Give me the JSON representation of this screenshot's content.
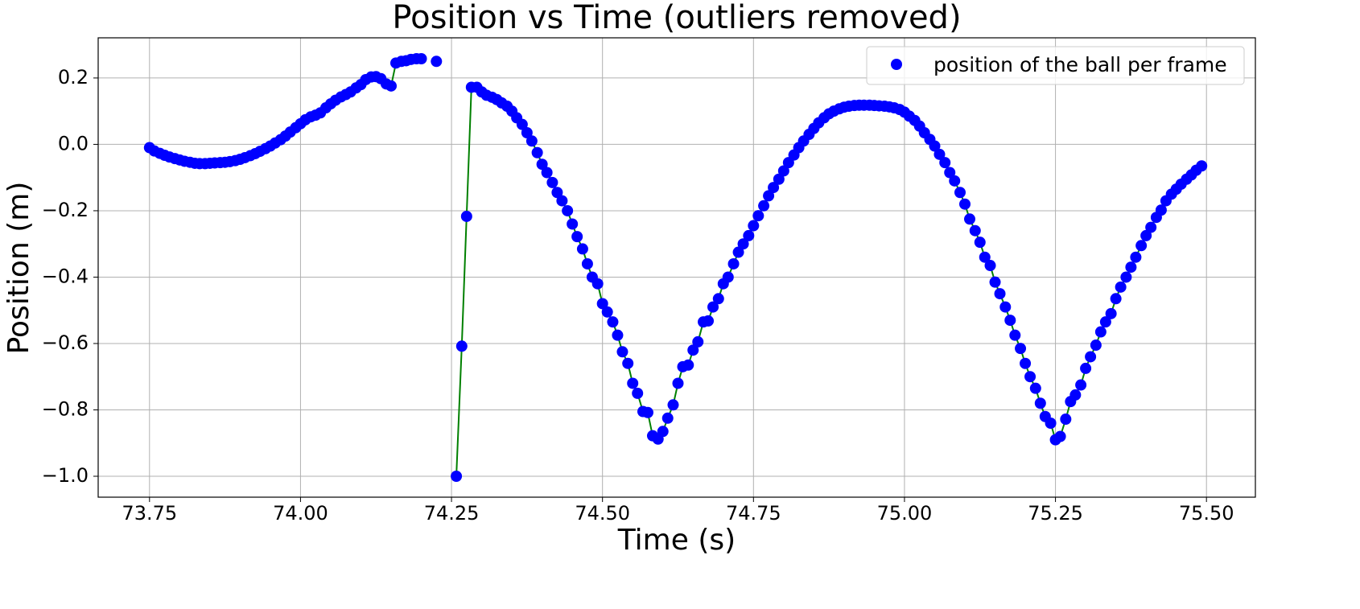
{
  "chart_data": {
    "type": "scatter",
    "title": "Position vs Time (outliers removed)",
    "x_label": "Time (s)",
    "y_label": "Position (m)",
    "x": [
      73.75,
      73.758,
      73.767,
      73.775,
      73.783,
      73.792,
      73.8,
      73.808,
      73.817,
      73.825,
      73.833,
      73.842,
      73.85,
      73.858,
      73.867,
      73.875,
      73.883,
      73.892,
      73.9,
      73.908,
      73.917,
      73.925,
      73.933,
      73.942,
      73.95,
      73.958,
      73.967,
      73.975,
      73.983,
      73.992,
      74.0,
      74.008,
      74.017,
      74.025,
      74.033,
      74.042,
      74.05,
      74.058,
      74.067,
      74.075,
      74.083,
      74.092,
      74.1,
      74.108,
      74.117,
      74.125,
      74.133,
      74.142,
      74.15,
      74.158,
      74.167,
      74.175,
      74.183,
      74.192,
      74.2,
      74.208,
      74.217,
      74.225,
      74.233,
      74.242,
      74.25,
      74.258,
      74.267,
      74.275,
      74.283,
      74.292,
      74.3,
      74.308,
      74.317,
      74.325,
      74.333,
      74.342,
      74.35,
      74.358,
      74.367,
      74.375,
      74.383,
      74.392,
      74.4,
      74.408,
      74.417,
      74.425,
      74.433,
      74.442,
      74.45,
      74.458,
      74.467,
      74.475,
      74.483,
      74.492,
      74.5,
      74.508,
      74.517,
      74.525,
      74.533,
      74.542,
      74.55,
      74.558,
      74.567,
      74.575,
      74.583,
      74.592,
      74.6,
      74.608,
      74.617,
      74.625,
      74.633,
      74.642,
      74.65,
      74.658,
      74.667,
      74.675,
      74.683,
      74.692,
      74.7,
      74.708,
      74.717,
      74.725,
      74.733,
      74.742,
      74.75,
      74.758,
      74.767,
      74.775,
      74.783,
      74.792,
      74.8,
      74.808,
      74.817,
      74.825,
      74.833,
      74.842,
      74.85,
      74.858,
      74.867,
      74.875,
      74.883,
      74.892,
      74.9,
      74.908,
      74.917,
      74.925,
      74.933,
      74.942,
      74.95,
      74.958,
      74.967,
      74.975,
      74.983,
      74.992,
      75.0,
      75.008,
      75.017,
      75.025,
      75.033,
      75.042,
      75.05,
      75.058,
      75.067,
      75.075,
      75.083,
      75.092,
      75.1,
      75.108,
      75.117,
      75.125,
      75.133,
      75.142,
      75.15,
      75.158,
      75.167,
      75.175,
      75.183,
      75.192,
      75.2,
      75.208,
      75.217,
      75.225,
      75.233,
      75.242,
      75.25,
      75.258,
      75.267,
      75.275,
      75.283,
      75.292,
      75.3,
      75.308,
      75.317,
      75.325,
      75.333,
      75.342,
      75.35,
      75.358,
      75.367,
      75.375,
      75.383,
      75.392,
      75.4,
      75.408,
      75.417,
      75.425,
      75.433,
      75.442,
      75.45,
      75.458,
      75.467,
      75.475,
      75.483,
      75.492
    ],
    "series": [
      {
        "name": "position of the ball per frame",
        "color": "#0000ff",
        "line_color": "#008000",
        "values": [
          -0.01,
          -0.02,
          -0.027,
          -0.033,
          -0.038,
          -0.043,
          -0.047,
          -0.051,
          -0.054,
          -0.057,
          -0.058,
          -0.058,
          -0.057,
          -0.056,
          -0.055,
          -0.054,
          -0.052,
          -0.049,
          -0.045,
          -0.04,
          -0.034,
          -0.028,
          -0.021,
          -0.013,
          -0.005,
          0.004,
          0.014,
          0.025,
          0.037,
          0.05,
          0.062,
          0.074,
          0.083,
          0.088,
          0.095,
          0.11,
          0.122,
          0.133,
          0.143,
          0.15,
          0.158,
          0.17,
          0.18,
          0.195,
          0.203,
          0.204,
          0.198,
          0.182,
          0.176,
          0.245,
          0.25,
          0.252,
          0.256,
          0.258,
          0.258,
          null,
          null,
          0.25,
          null,
          null,
          null,
          -1.0,
          -0.608,
          -0.217,
          0.172,
          0.172,
          0.158,
          0.148,
          0.142,
          0.135,
          0.125,
          0.115,
          0.1,
          0.08,
          0.06,
          0.035,
          0.01,
          -0.025,
          -0.06,
          -0.085,
          -0.115,
          -0.145,
          -0.17,
          -0.2,
          -0.24,
          -0.278,
          -0.315,
          -0.36,
          -0.4,
          -0.42,
          -0.48,
          -0.505,
          -0.535,
          -0.575,
          -0.625,
          -0.66,
          -0.72,
          -0.75,
          -0.805,
          -0.808,
          -0.878,
          -0.888,
          -0.865,
          -0.825,
          -0.785,
          -0.72,
          -0.67,
          -0.665,
          -0.62,
          -0.595,
          -0.535,
          -0.532,
          -0.49,
          -0.465,
          -0.42,
          -0.4,
          -0.36,
          -0.325,
          -0.3,
          -0.275,
          -0.245,
          -0.215,
          -0.185,
          -0.155,
          -0.13,
          -0.105,
          -0.08,
          -0.055,
          -0.032,
          -0.01,
          0.01,
          0.03,
          0.048,
          0.065,
          0.08,
          0.092,
          0.1,
          0.107,
          0.112,
          0.115,
          0.117,
          0.118,
          0.118,
          0.118,
          0.117,
          0.116,
          0.115,
          0.113,
          0.11,
          0.105,
          0.097,
          0.085,
          0.072,
          0.055,
          0.035,
          0.015,
          -0.005,
          -0.03,
          -0.055,
          -0.085,
          -0.11,
          -0.145,
          -0.18,
          -0.225,
          -0.26,
          -0.295,
          -0.34,
          -0.365,
          -0.415,
          -0.45,
          -0.49,
          -0.53,
          -0.575,
          -0.615,
          -0.66,
          -0.7,
          -0.735,
          -0.78,
          -0.82,
          -0.84,
          -0.89,
          -0.88,
          -0.828,
          -0.775,
          -0.755,
          -0.725,
          -0.675,
          -0.64,
          -0.605,
          -0.565,
          -0.535,
          -0.51,
          -0.465,
          -0.43,
          -0.4,
          -0.37,
          -0.34,
          -0.305,
          -0.275,
          -0.25,
          -0.22,
          -0.198,
          -0.17,
          -0.15,
          -0.135,
          -0.12,
          -0.105,
          -0.092,
          -0.078,
          -0.065
        ]
      }
    ],
    "xlim": [
      73.665,
      75.581
    ],
    "ylim": [
      -1.063,
      0.321
    ],
    "xticks": [
      73.75,
      {
        "value": 74.0,
        "label": "74.00"
      },
      74.25,
      {
        "value": 74.5,
        "label": "74.50"
      },
      74.75,
      {
        "value": 75.0,
        "label": "75.00"
      },
      75.25,
      {
        "value": 75.5,
        "label": "75.50"
      }
    ],
    "yticks": [
      {
        "value": -1.0,
        "label": "−1.0"
      },
      {
        "value": -0.8,
        "label": "−0.8"
      },
      {
        "value": -0.6,
        "label": "−0.6"
      },
      {
        "value": -0.4,
        "label": "−0.4"
      },
      {
        "value": -0.2,
        "label": "−0.2"
      },
      {
        "value": 0.0,
        "label": "0.0"
      },
      0.2
    ],
    "grid": true,
    "legend": "upper right"
  }
}
